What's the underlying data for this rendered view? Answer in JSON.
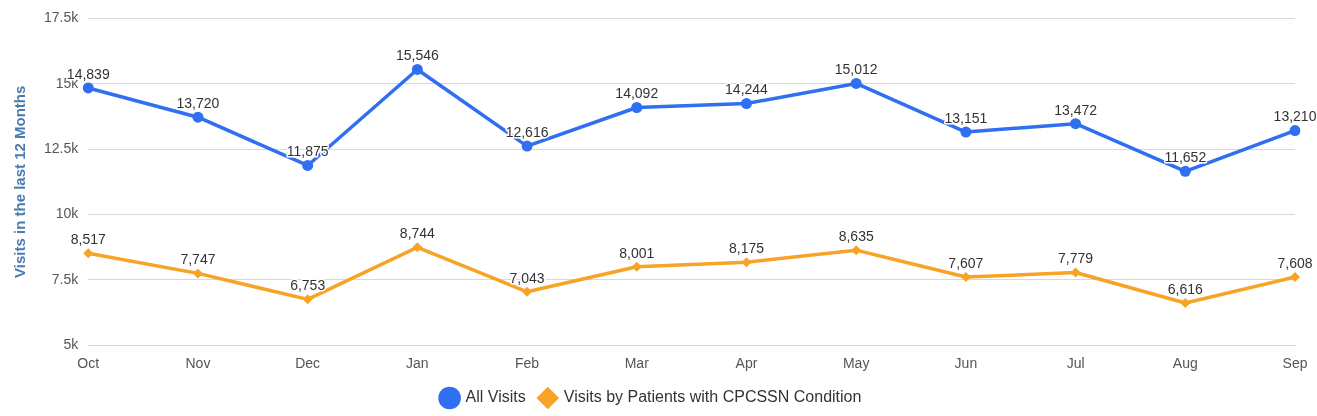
{
  "chart_data": {
    "type": "line",
    "ylabel": "Visits in the last 12 Months",
    "categories": [
      "Oct",
      "Nov",
      "Dec",
      "Jan",
      "Feb",
      "Mar",
      "Apr",
      "May",
      "Jun",
      "Jul",
      "Aug",
      "Sep"
    ],
    "series": [
      {
        "name": "All Visits",
        "color": "#2f6ff0",
        "marker": "circle",
        "values": [
          14839,
          13720,
          11875,
          15546,
          12616,
          14092,
          14244,
          15012,
          13151,
          13472,
          11652,
          13210
        ],
        "value_labels": [
          "14,839",
          "13,720",
          "11,875",
          "15,546",
          "12,616",
          "14,092",
          "14,244",
          "15,012",
          "13,151",
          "13,472",
          "11,652",
          "13,210"
        ]
      },
      {
        "name": "Visits by Patients with CPCSSN Condition",
        "color": "#f7a325",
        "marker": "diamond",
        "values": [
          8517,
          7747,
          6753,
          8744,
          7043,
          8001,
          8175,
          8635,
          7607,
          7779,
          6616,
          7608
        ],
        "value_labels": [
          "8,517",
          "7,747",
          "6,753",
          "8,744",
          "7,043",
          "8,001",
          "8,175",
          "8,635",
          "7,607",
          "7,779",
          "6,616",
          "7,608"
        ]
      }
    ],
    "ylim": [
      5000,
      17500
    ],
    "yticks": [
      {
        "value": 5000,
        "label": "5k"
      },
      {
        "value": 7500,
        "label": "7.5k"
      },
      {
        "value": 10000,
        "label": "10k"
      },
      {
        "value": 12500,
        "label": "12.5k"
      },
      {
        "value": 15000,
        "label": "15k"
      },
      {
        "value": 17500,
        "label": "17.5k"
      }
    ],
    "grid": "y",
    "legend": "bottom",
    "line_style": "solid"
  }
}
